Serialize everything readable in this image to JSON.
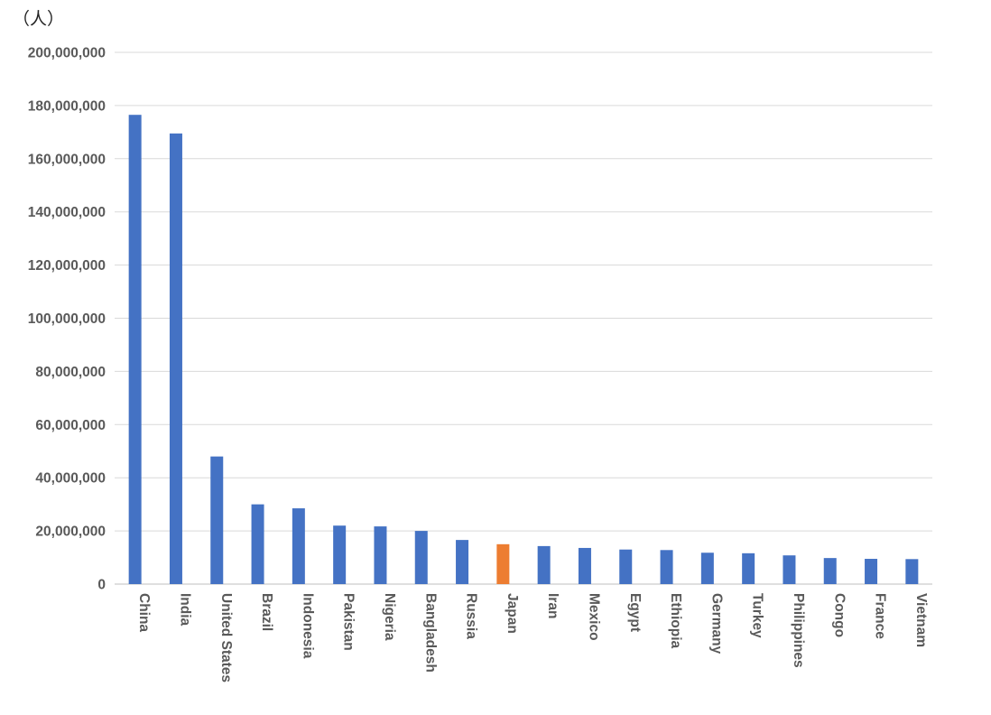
{
  "chart_data": {
    "type": "bar",
    "unit_label": "（人）",
    "categories": [
      "China",
      "India",
      "United States",
      "Brazil",
      "Indonesia",
      "Pakistan",
      "Nigeria",
      "Bangladesh",
      "Russia",
      "Japan",
      "Iran",
      "Mexico",
      "Egypt",
      "Ethiopia",
      "Germany",
      "Turkey",
      "Philippines",
      "Congo",
      "France",
      "Vietnam"
    ],
    "values": [
      176500000,
      169500000,
      48000000,
      30000000,
      28500000,
      22000000,
      21700000,
      20000000,
      16600000,
      15000000,
      14300000,
      13600000,
      13000000,
      12800000,
      11800000,
      11600000,
      10800000,
      9800000,
      9500000,
      9400000
    ],
    "highlight_category": "Japan",
    "colors": {
      "default": "#4472C4",
      "highlight": "#ED7D31",
      "grid": "#D9D9D9",
      "axis": "#BFBFBF"
    },
    "ylim": [
      0,
      200000000
    ],
    "yticks": [
      "0",
      "20,000,000",
      "40,000,000",
      "60,000,000",
      "80,000,000",
      "100,000,000",
      "120,000,000",
      "140,000,000",
      "160,000,000",
      "180,000,000",
      "200,000,000"
    ],
    "ytick_values": [
      0,
      20000000,
      40000000,
      60000000,
      80000000,
      100000000,
      120000000,
      140000000,
      160000000,
      180000000,
      200000000
    ],
    "grid": true,
    "legend": "none"
  }
}
